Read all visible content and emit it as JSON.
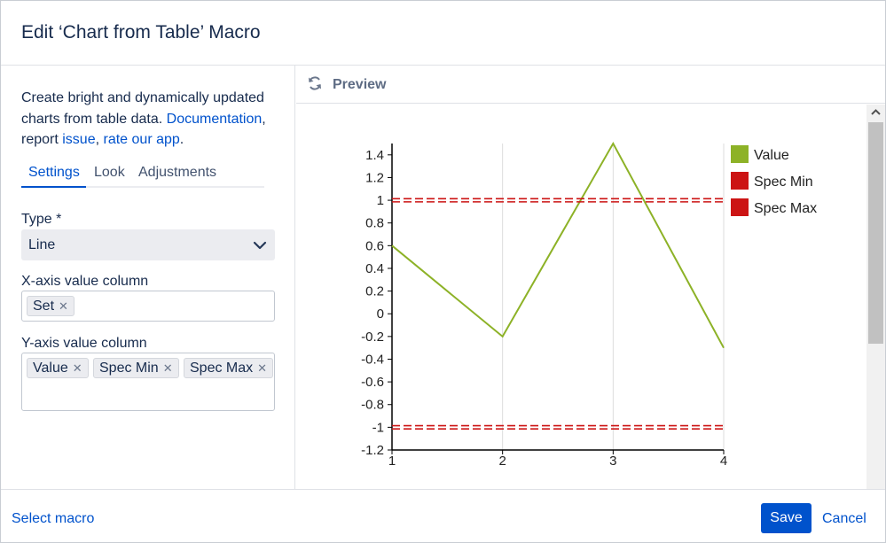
{
  "dialog": {
    "title": "Edit ‘Chart from Table’ Macro"
  },
  "description": {
    "text_1": "Create bright and dynamically updated charts from table data. ",
    "documentation_link": "Documentation",
    "text_2": ", report ",
    "issue_link": "issue",
    "text_3": ", ",
    "rate_link": "rate our app",
    "text_4": "."
  },
  "tabs": [
    {
      "label": "Settings",
      "active": true
    },
    {
      "label": "Look",
      "active": false
    },
    {
      "label": "Adjustments",
      "active": false
    }
  ],
  "settings": {
    "type_label": "Type *",
    "type_value": "Line",
    "x_axis_label": "X-axis value column",
    "x_axis_chips": [
      "Set"
    ],
    "y_axis_label": "Y-axis value column",
    "y_axis_chips": [
      "Value",
      "Spec Min",
      "Spec Max"
    ]
  },
  "preview": {
    "label": "Preview"
  },
  "chart_data": {
    "type": "line",
    "x": [
      1,
      2,
      3,
      4
    ],
    "series": [
      {
        "name": "Value",
        "values": [
          0.6,
          -0.2,
          1.5,
          -0.3
        ],
        "color": "#8db227",
        "style": "solid"
      },
      {
        "name": "Spec Min",
        "values": [
          -1,
          -1,
          -1,
          -1
        ],
        "color": "#cc1414",
        "style": "double-dashed"
      },
      {
        "name": "Spec Max",
        "values": [
          1,
          1,
          1,
          1
        ],
        "color": "#cc1414",
        "style": "double-dashed"
      }
    ],
    "xlim": [
      1,
      4
    ],
    "ylim": [
      -1.2,
      1.5
    ],
    "x_ticks": [
      "1",
      "2",
      "3",
      "4"
    ],
    "y_ticks": [
      "1.4",
      "1.2",
      "1",
      "0.8",
      "0.6",
      "0.4",
      "0.2",
      "0",
      "-0.2",
      "-0.4",
      "-0.6",
      "-0.8",
      "-1",
      "-1.2"
    ],
    "y_tick_values": [
      1.4,
      1.2,
      1,
      0.8,
      0.6,
      0.4,
      0.2,
      0,
      -0.2,
      -0.4,
      -0.6,
      -0.8,
      -1,
      -1.2
    ],
    "grid": "vertical",
    "legend_position": "right"
  },
  "footer": {
    "select_macro": "Select macro",
    "save": "Save",
    "cancel": "Cancel"
  },
  "colors": {
    "accent": "#0052cc",
    "value_series": "#8db227",
    "spec_series": "#cc1414"
  }
}
